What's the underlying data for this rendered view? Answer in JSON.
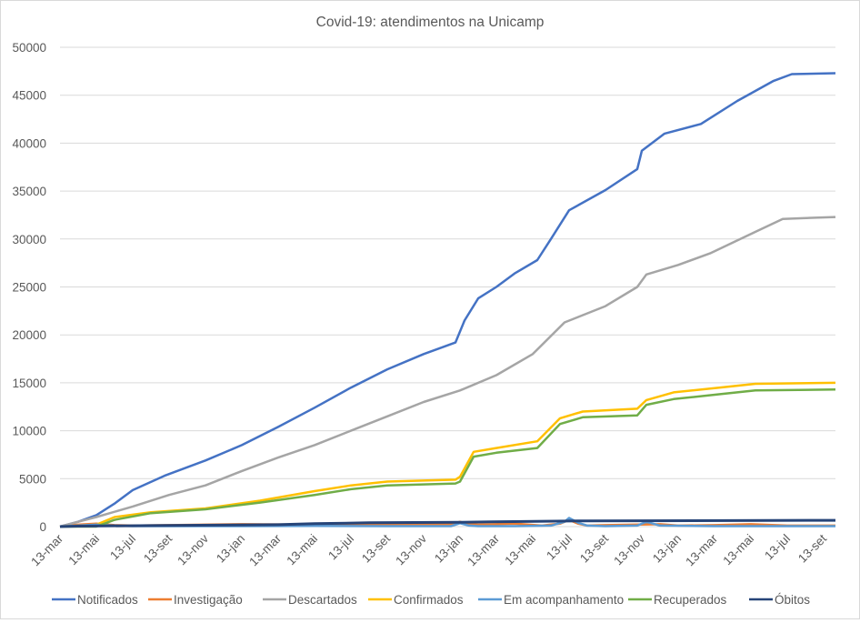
{
  "chart_data": {
    "type": "line",
    "title": "Covid-19: atendimentos  na Unicamp",
    "xlabel": "",
    "ylabel": "",
    "x_unit": "months since 13-mar (first year)",
    "ylim": [
      0,
      50000
    ],
    "yticks": [
      0,
      5000,
      10000,
      15000,
      20000,
      25000,
      30000,
      35000,
      40000,
      45000,
      50000
    ],
    "xtick_labels": [
      "13-mar",
      "13-mai",
      "13-jul",
      "13-set",
      "13-nov",
      "13-jan",
      "13-mar",
      "13-mai",
      "13-jul",
      "13-set",
      "13-nov",
      "13-jan",
      "13-mar",
      "13-mai",
      "13-jul",
      "13-set",
      "13-nov",
      "13-jan",
      "13-mar",
      "13-mai",
      "13-jul",
      "13-set"
    ],
    "xlim": [
      0,
      42.7
    ],
    "grid": true,
    "legend_position": "bottom",
    "series": [
      {
        "name": "Notificados",
        "color": "#4472c4",
        "x": [
          0,
          1,
          2,
          3,
          4,
          5.75,
          8,
          10,
          12,
          14,
          16,
          18,
          20,
          21.75,
          22.25,
          23,
          24,
          25,
          26.25,
          27,
          28,
          30,
          31.75,
          32,
          33.25,
          35.25,
          37.25,
          39.25,
          40.25,
          42.65
        ],
        "y": [
          0,
          500,
          1200,
          2400,
          3800,
          5300,
          6900,
          8500,
          10400,
          12400,
          14500,
          16400,
          18000,
          19200,
          21500,
          23800,
          25000,
          26400,
          27800,
          30000,
          33000,
          35100,
          37300,
          39200,
          41000,
          42000,
          44400,
          46500,
          47200,
          47300
        ]
      },
      {
        "name": "Investigação",
        "color": "#ed7d31",
        "x": [
          0,
          1,
          2,
          3,
          4,
          6,
          10,
          14,
          18,
          21.5,
          22,
          22.5,
          23,
          25,
          26.5,
          27.5,
          28,
          28.5,
          29,
          30,
          33,
          34,
          36,
          38,
          40,
          42.65
        ],
        "y": [
          0,
          200,
          300,
          150,
          100,
          150,
          250,
          200,
          250,
          250,
          500,
          250,
          200,
          300,
          100,
          300,
          700,
          300,
          100,
          150,
          250,
          100,
          150,
          250,
          100,
          100
        ]
      },
      {
        "name": "Descartados",
        "color": "#a5a5a5",
        "x": [
          0,
          1,
          2,
          4,
          6,
          8,
          10,
          12,
          14,
          16,
          18,
          20,
          22,
          24,
          26,
          27.75,
          30,
          31.75,
          32.25,
          34,
          35.75,
          37.75,
          39.75,
          42.65
        ],
        "y": [
          0,
          500,
          1000,
          2100,
          3300,
          4300,
          5800,
          7200,
          8500,
          10000,
          11500,
          13000,
          14200,
          15800,
          18000,
          21300,
          23000,
          25000,
          26300,
          27300,
          28500,
          30300,
          32100,
          32300
        ]
      },
      {
        "name": "Confirmados",
        "color": "#ffc000",
        "x": [
          0,
          2,
          3,
          5,
          8,
          11,
          14,
          16,
          18,
          21.75,
          22,
          22.75,
          24,
          26.25,
          27.5,
          28.75,
          31.75,
          32.25,
          33.75,
          36.25,
          38.25,
          42.65
        ],
        "y": [
          0,
          200,
          1000,
          1500,
          1900,
          2700,
          3700,
          4300,
          4700,
          4900,
          5200,
          7800,
          8200,
          8900,
          11300,
          12000,
          12300,
          13200,
          14000,
          14500,
          14900,
          15000
        ]
      },
      {
        "name": "Em acompanhamento",
        "color": "#5b9bd5",
        "x": [
          0,
          1,
          2,
          3,
          4,
          6,
          10,
          14,
          18,
          21.5,
          22,
          22.5,
          23,
          25,
          27,
          27.75,
          28,
          28.5,
          29,
          30,
          31.75,
          32.25,
          33,
          36,
          40,
          42.65
        ],
        "y": [
          0,
          100,
          200,
          100,
          50,
          50,
          50,
          80,
          50,
          50,
          350,
          100,
          50,
          50,
          100,
          500,
          900,
          400,
          100,
          50,
          100,
          500,
          100,
          50,
          50,
          50
        ]
      },
      {
        "name": "Recuperados",
        "color": "#70ad47",
        "x": [
          0,
          2,
          3,
          5,
          8,
          11,
          14,
          16,
          18,
          21.75,
          22,
          22.75,
          24,
          26.25,
          27.5,
          28.75,
          31.75,
          32.25,
          33.75,
          36.25,
          38.25,
          42.65
        ],
        "y": [
          0,
          0,
          700,
          1400,
          1800,
          2500,
          3300,
          3900,
          4300,
          4500,
          4700,
          7300,
          7700,
          8200,
          10700,
          11400,
          11600,
          12700,
          13300,
          13800,
          14200,
          14300
        ]
      },
      {
        "name": "Óbitos",
        "color": "#264478",
        "x": [
          0,
          1,
          5,
          12,
          14,
          17,
          22,
          23.75,
          29,
          42.65
        ],
        "y": [
          0,
          50,
          100,
          200,
          300,
          400,
          450,
          500,
          600,
          650
        ]
      }
    ]
  }
}
